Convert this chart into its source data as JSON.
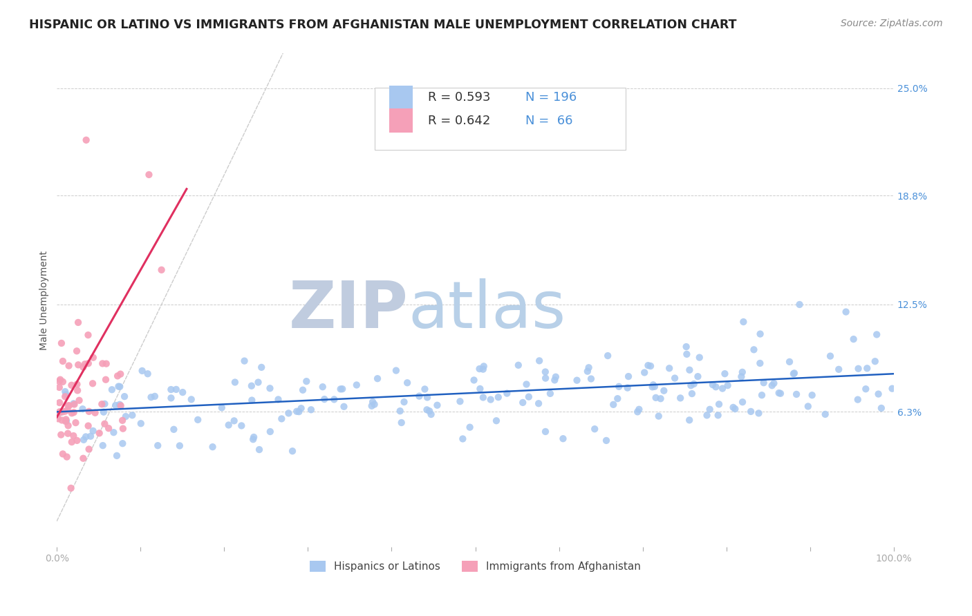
{
  "title": "HISPANIC OR LATINO VS IMMIGRANTS FROM AFGHANISTAN MALE UNEMPLOYMENT CORRELATION CHART",
  "source_text": "Source: ZipAtlas.com",
  "ylabel": "Male Unemployment",
  "xlim": [
    0,
    1.0
  ],
  "ylim": [
    -0.015,
    0.27
  ],
  "yticks": [
    0.063,
    0.125,
    0.188,
    0.25
  ],
  "ytick_labels": [
    "6.3%",
    "12.5%",
    "18.8%",
    "25.0%"
  ],
  "xticks": [
    0.0,
    0.1,
    0.2,
    0.3,
    0.4,
    0.5,
    0.6,
    0.7,
    0.8,
    0.9,
    1.0
  ],
  "blue_color": "#a8c8f0",
  "pink_color": "#f5a0b8",
  "blue_line_color": "#2060c0",
  "pink_line_color": "#e03060",
  "diag_line_color": "#cccccc",
  "R_blue": 0.593,
  "N_blue": 196,
  "R_pink": 0.642,
  "N_pink": 66,
  "legend_label_blue": "Hispanics or Latinos",
  "legend_label_pink": "Immigrants from Afghanistan",
  "watermark_zip": "ZIP",
  "watermark_atlas": "atlas",
  "watermark_color_zip": "#c0ccdf",
  "watermark_color_atlas": "#b8d0e8",
  "title_fontsize": 12.5,
  "axis_label_fontsize": 10,
  "tick_fontsize": 10,
  "legend_fontsize": 13,
  "source_fontsize": 10,
  "grid_color": "#cccccc",
  "background_color": "#ffffff",
  "ytick_color": "#4a90d9",
  "legend_text_color": "#333333",
  "legend_border_color": "#cccccc"
}
